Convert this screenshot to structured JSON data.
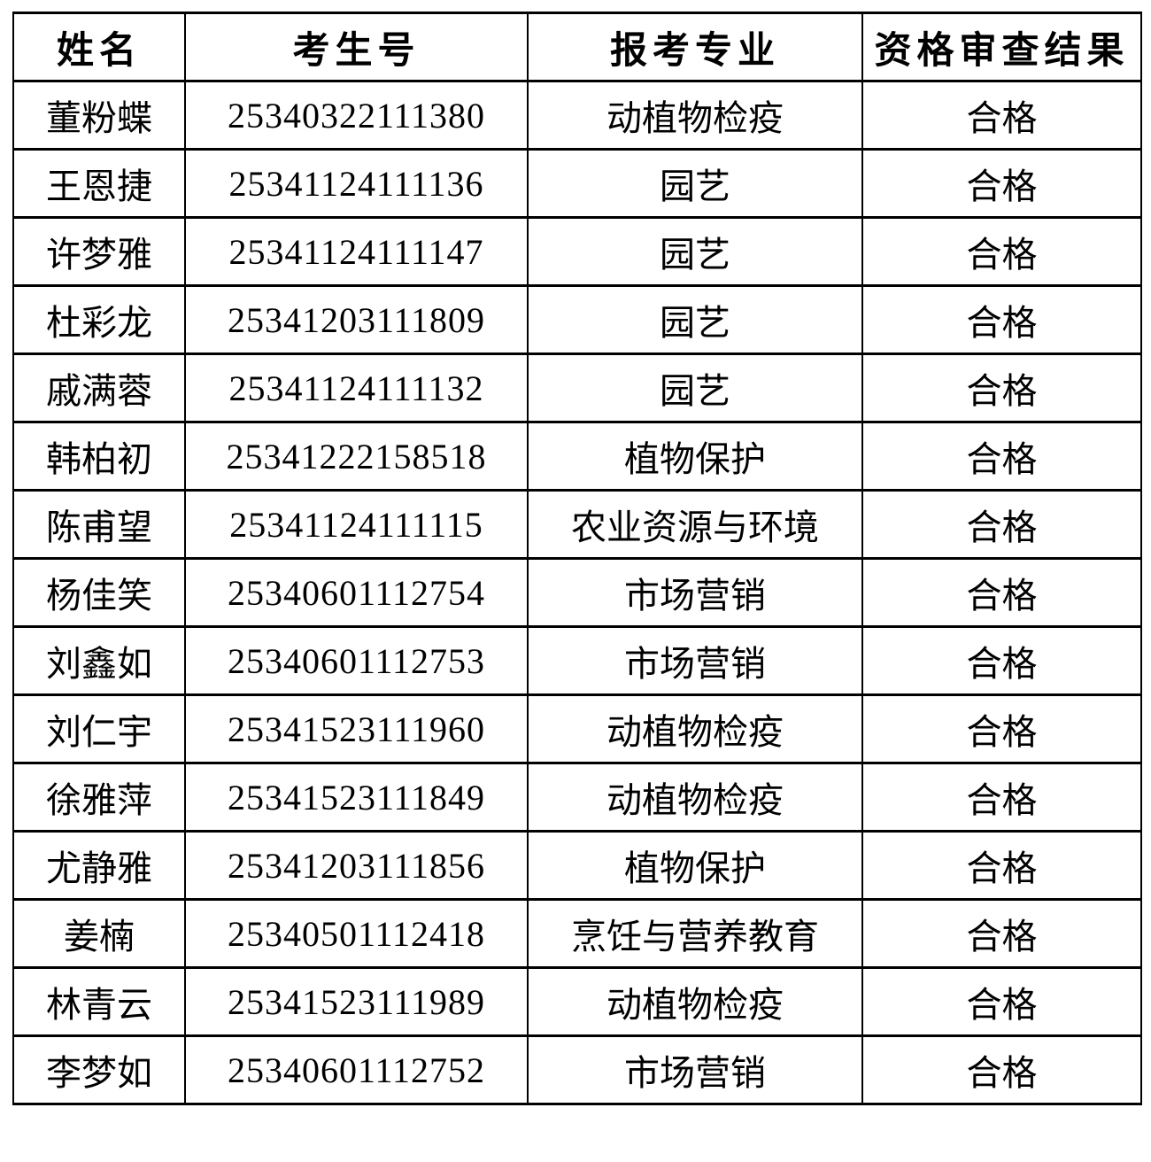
{
  "page": {
    "background_color": "#ffffff",
    "border_color": "#000000",
    "text_color": "#000000"
  },
  "table": {
    "columns": [
      "姓名",
      "考生号",
      "报考专业",
      "资格审查结果"
    ],
    "rows": [
      {
        "name": "董粉蝶",
        "candidate_no": "25340322111380",
        "major": "动植物检疫",
        "result": "合格"
      },
      {
        "name": "王恩捷",
        "candidate_no": "25341124111136",
        "major": "园艺",
        "result": "合格"
      },
      {
        "name": "许梦雅",
        "candidate_no": "25341124111147",
        "major": "园艺",
        "result": "合格"
      },
      {
        "name": "杜彩龙",
        "candidate_no": "25341203111809",
        "major": "园艺",
        "result": "合格"
      },
      {
        "name": "戚满蓉",
        "candidate_no": "25341124111132",
        "major": "园艺",
        "result": "合格"
      },
      {
        "name": "韩柏初",
        "candidate_no": "25341222158518",
        "major": "植物保护",
        "result": "合格"
      },
      {
        "name": "陈甫望",
        "candidate_no": "25341124111115",
        "major": "农业资源与环境",
        "result": "合格"
      },
      {
        "name": "杨佳笑",
        "candidate_no": "25340601112754",
        "major": "市场营销",
        "result": "合格"
      },
      {
        "name": "刘鑫如",
        "candidate_no": "25340601112753",
        "major": "市场营销",
        "result": "合格"
      },
      {
        "name": "刘仁宇",
        "candidate_no": "25341523111960",
        "major": "动植物检疫",
        "result": "合格"
      },
      {
        "name": "徐雅萍",
        "candidate_no": "25341523111849",
        "major": "动植物检疫",
        "result": "合格"
      },
      {
        "name": "尤静雅",
        "candidate_no": "25341203111856",
        "major": "植物保护",
        "result": "合格"
      },
      {
        "name": "姜楠",
        "candidate_no": "25340501112418",
        "major": "烹饪与营养教育",
        "result": "合格"
      },
      {
        "name": "林青云",
        "candidate_no": "25341523111989",
        "major": "动植物检疫",
        "result": "合格"
      },
      {
        "name": "李梦如",
        "candidate_no": "25340601112752",
        "major": "市场营销",
        "result": "合格"
      }
    ]
  }
}
